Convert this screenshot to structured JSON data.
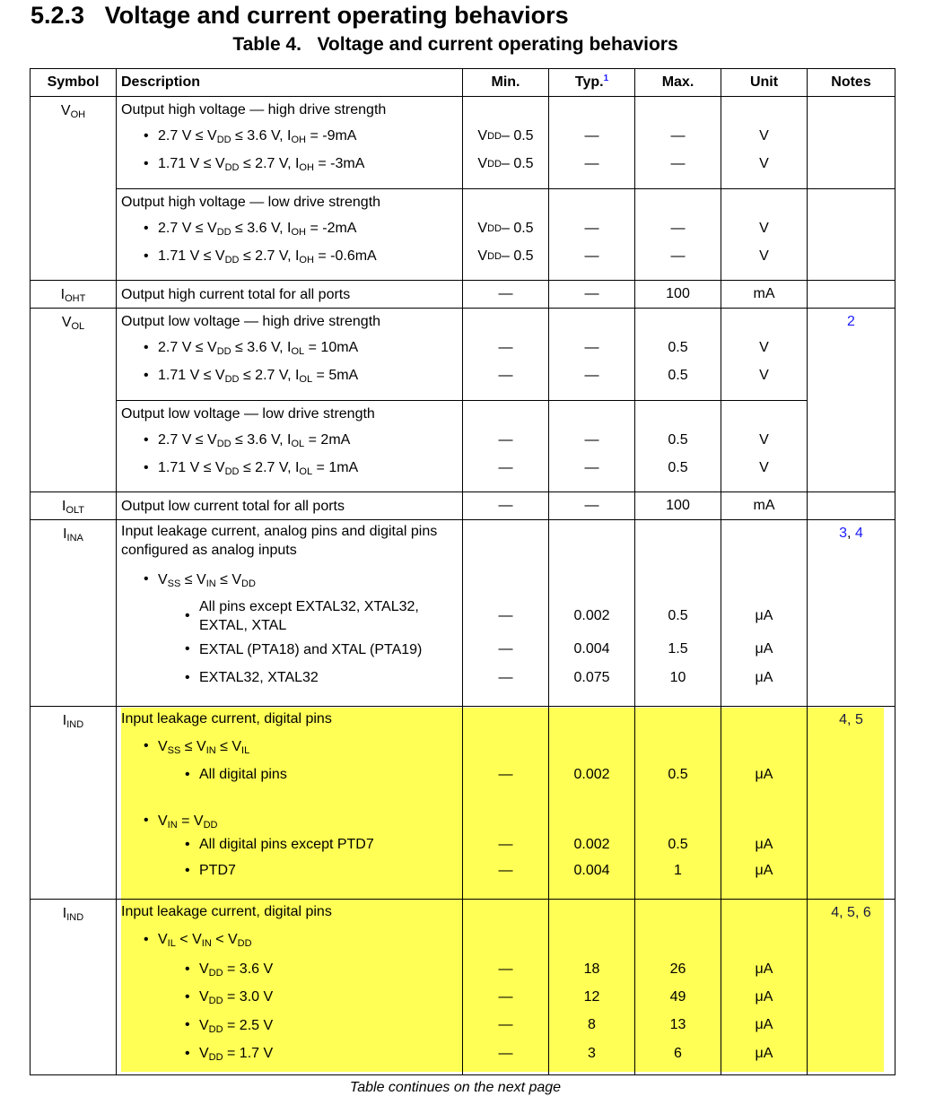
{
  "section": {
    "number": "5.2.3",
    "title": "Voltage and current operating behaviors"
  },
  "table": {
    "title": "Table 4.   Voltage and current operating behaviors",
    "headers": {
      "symbol": "Symbol",
      "description": "Description",
      "min": "Min.",
      "typ": "Typ.",
      "typ_footnote": "1",
      "max": "Max.",
      "unit": "Unit",
      "notes": "Notes"
    },
    "highlight_color": "#ffff55",
    "link_color": "#1a1aff",
    "rows": [
      {
        "symbol": "V_{OH}",
        "notes": [],
        "lines": [
          {
            "level": 0,
            "text": "Output high voltage — high drive strength"
          },
          {
            "level": 1,
            "text": "2.7 V ≤ V_{DD} ≤ 3.6 V, I_{OH} = -9mA",
            "min": "V_{DD} – 0.5",
            "typ": "—",
            "max": "—",
            "unit": "V"
          },
          {
            "level": 1,
            "text": "1.71 V ≤ V_{DD} ≤ 2.7 V, I_{OH} = -3mA",
            "min": "V_{DD} – 0.5",
            "typ": "—",
            "max": "—",
            "unit": "V"
          }
        ]
      },
      {
        "notes": [],
        "lines": [
          {
            "level": 0,
            "text": "Output high voltage — low drive strength"
          },
          {
            "level": 1,
            "text": "2.7 V ≤ V_{DD} ≤ 3.6 V, I_{OH} = -2mA",
            "min": "V_{DD} – 0.5",
            "typ": "—",
            "max": "—",
            "unit": "V"
          },
          {
            "level": 1,
            "text": "1.71 V ≤ V_{DD} ≤ 2.7 V, I_{OH} = -0.6mA",
            "min": "V_{DD} – 0.5",
            "typ": "—",
            "max": "—",
            "unit": "V"
          }
        ]
      },
      {
        "symbol": "I_{OHT}",
        "notes": [],
        "lines": [
          {
            "level": 0,
            "text": "Output high current total for all ports",
            "min": "—",
            "typ": "—",
            "max": "100",
            "unit": "mA"
          }
        ]
      },
      {
        "symbol": "V_{OL}",
        "notes": [
          {
            "n": "2",
            "link": true
          }
        ],
        "lines": [
          {
            "level": 0,
            "text": "Output low voltage — high drive strength"
          },
          {
            "level": 1,
            "text": "2.7 V ≤ V_{DD} ≤ 3.6 V, I_{OL} = 10mA",
            "min": "—",
            "typ": "—",
            "max": "0.5",
            "unit": "V"
          },
          {
            "level": 1,
            "text": "1.71 V ≤ V_{DD} ≤ 2.7 V, I_{OL} = 5mA",
            "min": "—",
            "typ": "—",
            "max": "0.5",
            "unit": "V"
          }
        ]
      },
      {
        "lines": [
          {
            "level": 0,
            "text": "Output low voltage — low drive strength"
          },
          {
            "level": 1,
            "text": "2.7 V ≤ V_{DD} ≤ 3.6 V, I_{OL} = 2mA",
            "min": "—",
            "typ": "—",
            "max": "0.5",
            "unit": "V"
          },
          {
            "level": 1,
            "text": "1.71 V ≤ V_{DD} ≤ 2.7 V, I_{OL} = 1mA",
            "min": "—",
            "typ": "—",
            "max": "0.5",
            "unit": "V"
          }
        ]
      },
      {
        "symbol": "I_{OLT}",
        "notes": [],
        "lines": [
          {
            "level": 0,
            "text": "Output low current total for all ports",
            "min": "—",
            "typ": "—",
            "max": "100",
            "unit": "mA"
          }
        ]
      },
      {
        "symbol": "I_{INA}",
        "notes": [
          {
            "n": "3",
            "link": true
          },
          {
            "n": "4",
            "link": true
          }
        ],
        "lines": [
          {
            "level": 0,
            "text": "Input leakage current, analog pins and digital pins configured as analog inputs"
          },
          {
            "level": 1,
            "text": "V_{SS} ≤ V_{IN} ≤ V_{DD}"
          },
          {
            "level": 2,
            "text": "All pins except EXTAL32, XTAL32, EXTAL, XTAL",
            "min": "—",
            "typ": "0.002",
            "max": "0.5",
            "unit": "μA"
          },
          {
            "level": 2,
            "text": "EXTAL (PTA18) and XTAL (PTA19)",
            "min": "—",
            "typ": "0.004",
            "max": "1.5",
            "unit": "μA"
          },
          {
            "level": 2,
            "text": "EXTAL32, XTAL32",
            "min": "—",
            "typ": "0.075",
            "max": "10",
            "unit": "μA"
          }
        ]
      },
      {
        "symbol": "I_{IND}",
        "highlighted": true,
        "notes": [
          {
            "n": "4",
            "link": false
          },
          {
            "n": "5",
            "link": false
          }
        ],
        "lines": [
          {
            "level": 0,
            "text": "Input leakage current, digital pins"
          },
          {
            "level": 1,
            "text": "V_{SS} ≤ V_{IN} ≤ V_{IL}"
          },
          {
            "level": 2,
            "text": "All digital pins",
            "min": "—",
            "typ": "0.002",
            "max": "0.5",
            "unit": "μA"
          },
          {
            "level": -1,
            "text": ""
          },
          {
            "level": 1,
            "text": "V_{IN} = V_{DD}"
          },
          {
            "level": 2,
            "text": "All digital pins except PTD7",
            "min": "—",
            "typ": "0.002",
            "max": "0.5",
            "unit": "μA"
          },
          {
            "level": 2,
            "text": "PTD7",
            "min": "—",
            "typ": "0.004",
            "max": "1",
            "unit": "μA"
          }
        ]
      },
      {
        "symbol": "I_{IND}",
        "highlighted": true,
        "notes": [
          {
            "n": "4",
            "link": false
          },
          {
            "n": "5",
            "link": false
          },
          {
            "n": "6",
            "link": false
          }
        ],
        "lines": [
          {
            "level": 0,
            "text": "Input leakage current, digital pins"
          },
          {
            "level": 1,
            "text": "V_{IL} < V_{IN} < V_{DD}"
          },
          {
            "level": 2,
            "text": "V_{DD} = 3.6 V",
            "min": "—",
            "typ": "18",
            "max": "26",
            "unit": "μA"
          },
          {
            "level": 2,
            "text": "V_{DD} = 3.0 V",
            "min": "—",
            "typ": "12",
            "max": "49",
            "unit": "μA"
          },
          {
            "level": 2,
            "text": "V_{DD} = 2.5 V",
            "min": "—",
            "typ": "8",
            "max": "13",
            "unit": "μA"
          },
          {
            "level": 2,
            "text": "V_{DD} = 1.7 V",
            "min": "—",
            "typ": "3",
            "max": "6",
            "unit": "μA"
          }
        ]
      }
    ],
    "continuation": "Table continues on the next page"
  }
}
